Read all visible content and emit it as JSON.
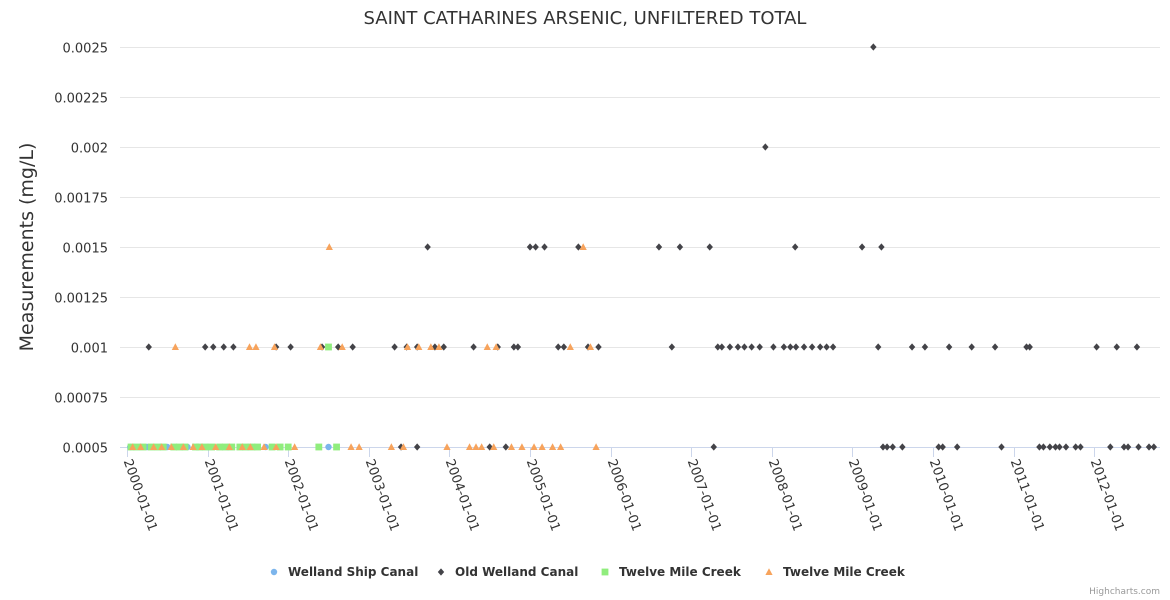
{
  "chart_data": {
    "type": "scatter",
    "title": "SAINT CATHARINES ARSENIC, UNFILTERED TOTAL",
    "xlabel": "",
    "ylabel": "Measurements (mg/L)",
    "ylim": [
      0.0005,
      0.0025
    ],
    "y_ticks": [
      "0.0005",
      "0.00075",
      "0.001",
      "0.00125",
      "0.0015",
      "0.00175",
      "0.002",
      "0.00225",
      "0.0025"
    ],
    "x_ticks": [
      "2000-01-01",
      "2001-01-01",
      "2002-01-01",
      "2003-01-01",
      "2004-01-01",
      "2005-01-01",
      "2006-01-01",
      "2007-01-01",
      "2008-01-01",
      "2009-01-01",
      "2010-01-01",
      "2011-01-01",
      "2012-01-01"
    ],
    "xlim": [
      2000.0,
      2013.3
    ],
    "credits": "Highcharts.com",
    "series": [
      {
        "name": "Welland Ship Canal",
        "marker": "circle",
        "color": "#7cb5ec",
        "points": [
          [
            2000.04,
            0.0005
          ],
          [
            2000.25,
            0.0005
          ],
          [
            2000.5,
            0.0005
          ],
          [
            2000.75,
            0.0005
          ],
          [
            2001.0,
            0.0005
          ],
          [
            2001.25,
            0.0005
          ],
          [
            2001.5,
            0.0005
          ],
          [
            2001.72,
            0.0005
          ],
          [
            2002.5,
            0.0005
          ]
        ]
      },
      {
        "name": "Old Welland Canal",
        "marker": "diamond",
        "color": "#434348",
        "points": [
          [
            2000.27,
            0.001
          ],
          [
            2000.97,
            0.001
          ],
          [
            2001.07,
            0.001
          ],
          [
            2001.2,
            0.001
          ],
          [
            2001.32,
            0.001
          ],
          [
            2001.85,
            0.001
          ],
          [
            2002.03,
            0.001
          ],
          [
            2002.42,
            0.001
          ],
          [
            2002.62,
            0.001
          ],
          [
            2002.8,
            0.001
          ],
          [
            2003.32,
            0.001
          ],
          [
            2003.47,
            0.001
          ],
          [
            2003.6,
            0.001
          ],
          [
            2003.82,
            0.001
          ],
          [
            2003.93,
            0.001
          ],
          [
            2004.3,
            0.001
          ],
          [
            2004.6,
            0.001
          ],
          [
            2004.8,
            0.001
          ],
          [
            2004.85,
            0.001
          ],
          [
            2005.35,
            0.001
          ],
          [
            2005.42,
            0.001
          ],
          [
            2005.72,
            0.001
          ],
          [
            2005.85,
            0.001
          ],
          [
            2006.76,
            0.001
          ],
          [
            2007.33,
            0.001
          ],
          [
            2007.38,
            0.001
          ],
          [
            2007.48,
            0.001
          ],
          [
            2007.58,
            0.001
          ],
          [
            2007.66,
            0.001
          ],
          [
            2007.75,
            0.001
          ],
          [
            2007.85,
            0.001
          ],
          [
            2008.02,
            0.001
          ],
          [
            2008.15,
            0.001
          ],
          [
            2008.23,
            0.001
          ],
          [
            2008.3,
            0.001
          ],
          [
            2008.4,
            0.001
          ],
          [
            2008.5,
            0.001
          ],
          [
            2008.6,
            0.001
          ],
          [
            2008.68,
            0.001
          ],
          [
            2008.76,
            0.001
          ],
          [
            2009.32,
            0.001
          ],
          [
            2009.74,
            0.001
          ],
          [
            2009.9,
            0.001
          ],
          [
            2010.2,
            0.001
          ],
          [
            2010.48,
            0.001
          ],
          [
            2010.77,
            0.001
          ],
          [
            2011.16,
            0.001
          ],
          [
            2011.2,
            0.001
          ],
          [
            2012.03,
            0.001
          ],
          [
            2012.28,
            0.001
          ],
          [
            2012.53,
            0.001
          ],
          [
            2003.73,
            0.0015
          ],
          [
            2005.0,
            0.0015
          ],
          [
            2005.07,
            0.0015
          ],
          [
            2005.18,
            0.0015
          ],
          [
            2005.6,
            0.0015
          ],
          [
            2006.6,
            0.0015
          ],
          [
            2006.86,
            0.0015
          ],
          [
            2007.23,
            0.0015
          ],
          [
            2008.29,
            0.0015
          ],
          [
            2009.12,
            0.0015
          ],
          [
            2009.36,
            0.0015
          ],
          [
            2007.92,
            0.002
          ],
          [
            2009.26,
            0.0025
          ],
          [
            2003.4,
            0.0005
          ],
          [
            2003.6,
            0.0005
          ],
          [
            2004.5,
            0.0005
          ],
          [
            2004.7,
            0.0005
          ],
          [
            2007.28,
            0.0005
          ],
          [
            2009.38,
            0.0005
          ],
          [
            2009.43,
            0.0005
          ],
          [
            2009.5,
            0.0005
          ],
          [
            2009.62,
            0.0005
          ],
          [
            2010.07,
            0.0005
          ],
          [
            2010.12,
            0.0005
          ],
          [
            2010.3,
            0.0005
          ],
          [
            2010.85,
            0.0005
          ],
          [
            2011.32,
            0.0005
          ],
          [
            2011.37,
            0.0005
          ],
          [
            2011.45,
            0.0005
          ],
          [
            2011.52,
            0.0005
          ],
          [
            2011.57,
            0.0005
          ],
          [
            2011.65,
            0.0005
          ],
          [
            2011.77,
            0.0005
          ],
          [
            2011.83,
            0.0005
          ],
          [
            2012.2,
            0.0005
          ],
          [
            2012.37,
            0.0005
          ],
          [
            2012.42,
            0.0005
          ],
          [
            2012.55,
            0.0005
          ],
          [
            2012.68,
            0.0005
          ],
          [
            2012.74,
            0.0005
          ]
        ]
      },
      {
        "name": "Twelve Mile Creek",
        "marker": "square",
        "color": "#90ed7d",
        "points": [
          [
            2000.05,
            0.0005
          ],
          [
            2000.12,
            0.0005
          ],
          [
            2000.2,
            0.0005
          ],
          [
            2000.3,
            0.0005
          ],
          [
            2000.38,
            0.0005
          ],
          [
            2000.45,
            0.0005
          ],
          [
            2000.58,
            0.0005
          ],
          [
            2000.65,
            0.0005
          ],
          [
            2000.72,
            0.0005
          ],
          [
            2000.85,
            0.0005
          ],
          [
            2000.9,
            0.0005
          ],
          [
            2000.97,
            0.0005
          ],
          [
            2001.05,
            0.0005
          ],
          [
            2001.15,
            0.0005
          ],
          [
            2001.22,
            0.0005
          ],
          [
            2001.3,
            0.0005
          ],
          [
            2001.4,
            0.0005
          ],
          [
            2001.47,
            0.0005
          ],
          [
            2001.55,
            0.0005
          ],
          [
            2001.62,
            0.0005
          ],
          [
            2001.8,
            0.0005
          ],
          [
            2001.9,
            0.0005
          ],
          [
            2002.0,
            0.0005
          ],
          [
            2002.38,
            0.0005
          ],
          [
            2002.6,
            0.0005
          ],
          [
            2002.5,
            0.001
          ]
        ]
      },
      {
        "name": "Twelve Mile Creek",
        "marker": "triangle",
        "color": "#f7a35c",
        "points": [
          [
            2000.07,
            0.0005
          ],
          [
            2000.17,
            0.0005
          ],
          [
            2000.33,
            0.0005
          ],
          [
            2000.43,
            0.0005
          ],
          [
            2000.55,
            0.0005
          ],
          [
            2000.7,
            0.0005
          ],
          [
            2000.82,
            0.0005
          ],
          [
            2000.93,
            0.0005
          ],
          [
            2001.1,
            0.0005
          ],
          [
            2001.27,
            0.0005
          ],
          [
            2001.43,
            0.0005
          ],
          [
            2001.53,
            0.0005
          ],
          [
            2001.7,
            0.0005
          ],
          [
            2001.85,
            0.0005
          ],
          [
            2002.08,
            0.0005
          ],
          [
            2002.78,
            0.0005
          ],
          [
            2002.88,
            0.0005
          ],
          [
            2003.28,
            0.0005
          ],
          [
            2003.43,
            0.0005
          ],
          [
            2003.97,
            0.0005
          ],
          [
            2004.25,
            0.0005
          ],
          [
            2004.33,
            0.0005
          ],
          [
            2004.4,
            0.0005
          ],
          [
            2004.55,
            0.0005
          ],
          [
            2004.77,
            0.0005
          ],
          [
            2004.9,
            0.0005
          ],
          [
            2005.05,
            0.0005
          ],
          [
            2005.15,
            0.0005
          ],
          [
            2005.28,
            0.0005
          ],
          [
            2005.38,
            0.0005
          ],
          [
            2005.82,
            0.0005
          ],
          [
            2000.6,
            0.001
          ],
          [
            2001.52,
            0.001
          ],
          [
            2001.6,
            0.001
          ],
          [
            2001.83,
            0.001
          ],
          [
            2002.4,
            0.001
          ],
          [
            2002.67,
            0.001
          ],
          [
            2003.48,
            0.001
          ],
          [
            2003.62,
            0.001
          ],
          [
            2003.77,
            0.001
          ],
          [
            2003.87,
            0.001
          ],
          [
            2004.47,
            0.001
          ],
          [
            2004.58,
            0.001
          ],
          [
            2005.5,
            0.001
          ],
          [
            2005.75,
            0.001
          ],
          [
            2002.51,
            0.0015
          ],
          [
            2005.66,
            0.0015
          ]
        ]
      }
    ]
  },
  "legend": [
    {
      "label": "Welland Ship Canal",
      "marker": "circle",
      "color": "#7cb5ec"
    },
    {
      "label": "Old Welland Canal",
      "marker": "diamond",
      "color": "#434348"
    },
    {
      "label": "Twelve Mile Creek",
      "marker": "square",
      "color": "#90ed7d"
    },
    {
      "label": "Twelve Mile Creek",
      "marker": "triangle",
      "color": "#f7a35c"
    }
  ]
}
